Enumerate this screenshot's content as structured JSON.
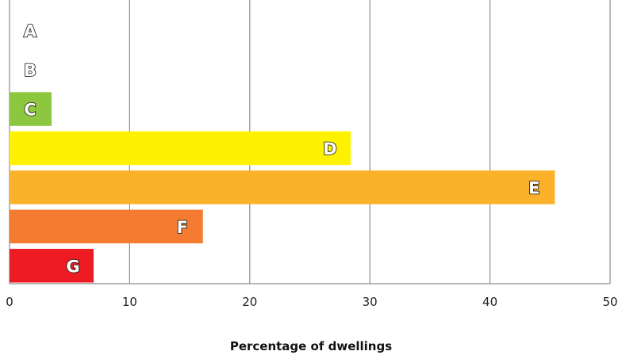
{
  "chart_data": {
    "type": "bar",
    "orientation": "horizontal",
    "categories": [
      "A",
      "B",
      "C",
      "D",
      "E",
      "F",
      "G"
    ],
    "values": [
      0,
      0,
      3.5,
      28.4,
      45.4,
      16.1,
      7.0
    ],
    "colors": [
      "#00a651",
      "#50b848",
      "#8dc63f",
      "#fff200",
      "#fbb22a",
      "#f47b30",
      "#ed1c24"
    ],
    "xlabel": "Percentage of dwellings",
    "xlim": [
      0,
      50
    ],
    "xticks": [
      "0",
      "10",
      "20",
      "30",
      "40",
      "50"
    ],
    "grid": true
  }
}
